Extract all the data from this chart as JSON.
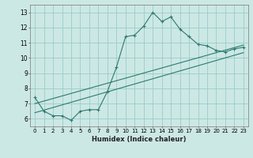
{
  "title": "",
  "xlabel": "Humidex (Indice chaleur)",
  "ylabel": "",
  "bg_color": "#cce8e4",
  "grid_color": "#99cccc",
  "line_color": "#2d7a6e",
  "xlim": [
    -0.5,
    23.5
  ],
  "ylim": [
    5.5,
    13.5
  ],
  "xticks": [
    0,
    1,
    2,
    3,
    4,
    5,
    6,
    7,
    8,
    9,
    10,
    11,
    12,
    13,
    14,
    15,
    16,
    17,
    18,
    19,
    20,
    21,
    22,
    23
  ],
  "yticks": [
    6,
    7,
    8,
    9,
    10,
    11,
    12,
    13
  ],
  "curve1_x": [
    0,
    1,
    2,
    3,
    4,
    5,
    6,
    7,
    8,
    9,
    10,
    11,
    12,
    13,
    14,
    15,
    16,
    17,
    18,
    19,
    20,
    21,
    22,
    23
  ],
  "curve1_y": [
    7.4,
    6.5,
    6.2,
    6.2,
    5.9,
    6.5,
    6.6,
    6.6,
    7.8,
    9.4,
    11.4,
    11.5,
    12.1,
    13.0,
    12.4,
    12.7,
    11.9,
    11.4,
    10.9,
    10.8,
    10.5,
    10.4,
    10.6,
    10.7
  ],
  "line2_x": [
    0,
    23
  ],
  "line2_y": [
    7.0,
    10.85
  ],
  "line3_x": [
    0,
    23
  ],
  "line3_y": [
    6.4,
    10.35
  ]
}
